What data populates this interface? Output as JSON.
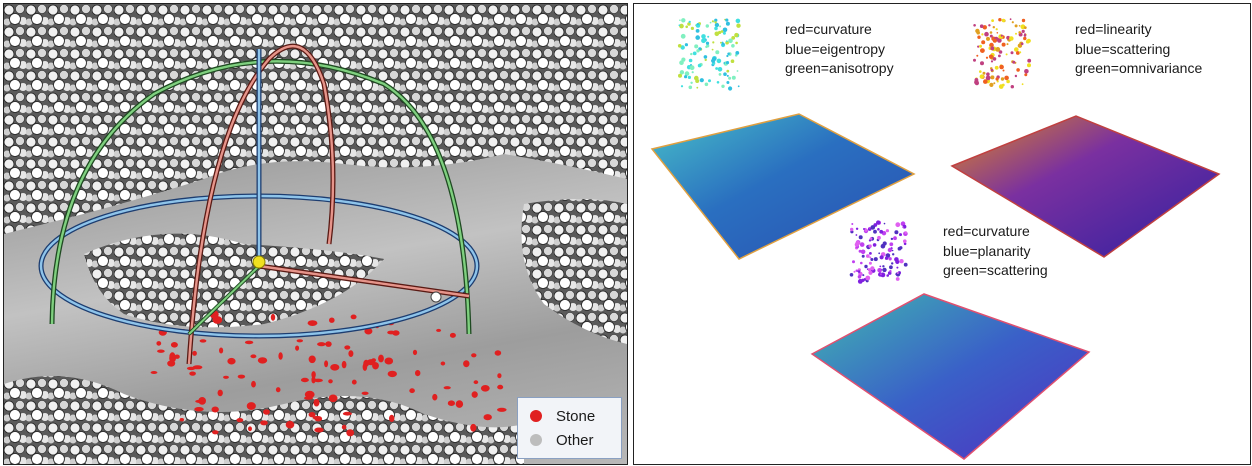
{
  "left_panel": {
    "legend": {
      "items": [
        {
          "label": "Stone",
          "color": "#e02020"
        },
        {
          "label": "Other",
          "color": "#bdbdbd"
        }
      ]
    },
    "gizmo_colors": {
      "x_ring": "#d97060",
      "y_ring": "#6cc070",
      "z_ring": "#7fb8e0",
      "center": "#f0e020"
    }
  },
  "right_panel": {
    "plots": [
      {
        "lines": [
          "red=curvature",
          "blue=eigentropy",
          "green=anisotropy"
        ]
      },
      {
        "lines": [
          "red=linearity",
          "blue=scattering",
          "green=omnivariance"
        ]
      },
      {
        "lines": [
          "red=curvature",
          "blue=planarity",
          "green=scattering"
        ]
      }
    ],
    "surface_colors": {
      "plot_1": [
        "#2a4fb0",
        "#3aa0c8",
        "#6fd0a0"
      ],
      "plot_2": [
        "#3020a0",
        "#8040a0",
        "#e0a020"
      ],
      "plot_3": [
        "#4030c0",
        "#3a70c8",
        "#50c0a0"
      ]
    }
  }
}
